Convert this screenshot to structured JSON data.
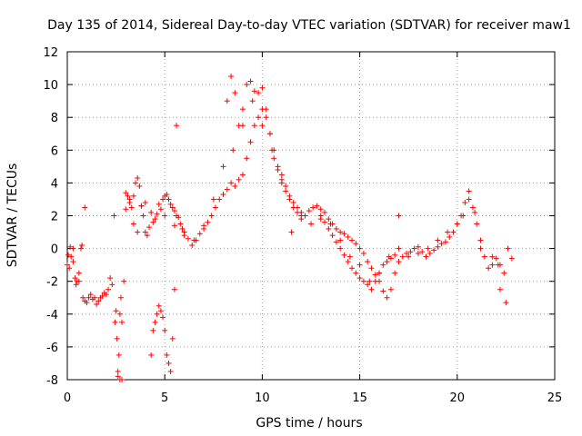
{
  "chart_data": {
    "type": "scatter",
    "title": "Day 135 of 2014, Sidereal Day-to-day VTEC variation (SDTVAR) for receiver maw1",
    "xlabel": "GPS time / hours",
    "ylabel": "SDTVAR / TECUs",
    "xlim": [
      0,
      25
    ],
    "ylim": [
      -8,
      12
    ],
    "xticks": [
      0,
      5,
      10,
      15,
      20,
      25
    ],
    "yticks": [
      -8,
      -6,
      -4,
      -2,
      0,
      2,
      4,
      6,
      8,
      10,
      12
    ],
    "grid": true,
    "marker": "+",
    "color": "#ff0000",
    "series": [
      {
        "name": "SDTVAR",
        "x": [
          0.0,
          0.1,
          0.2,
          0.3,
          0.4,
          0.5,
          0.6,
          0.7,
          0.8,
          0.9,
          1.0,
          1.1,
          1.2,
          1.3,
          1.4,
          1.5,
          1.6,
          1.7,
          1.8,
          1.9,
          2.0,
          2.1,
          2.2,
          2.3,
          2.4,
          2.5,
          2.6,
          2.7,
          2.8,
          2.9,
          3.0,
          3.1,
          3.2,
          3.3,
          3.4,
          3.5,
          3.6,
          3.7,
          3.8,
          3.9,
          4.0,
          4.1,
          4.2,
          4.3,
          4.4,
          4.5,
          4.6,
          4.7,
          4.8,
          4.9,
          5.0,
          5.1,
          5.2,
          5.3,
          5.4,
          5.5,
          5.6,
          5.7,
          5.8,
          5.9,
          6.0,
          6.2,
          6.4,
          6.6,
          6.8,
          7.0,
          7.2,
          7.4,
          7.6,
          7.8,
          8.0,
          8.2,
          8.4,
          8.6,
          8.8,
          9.0,
          9.2,
          9.4,
          9.6,
          9.8,
          10.0,
          10.2,
          10.4,
          10.6,
          10.8,
          11.0,
          11.2,
          11.4,
          11.6,
          11.8,
          12.0,
          12.2,
          12.4,
          12.6,
          12.8,
          13.0,
          13.2,
          13.4,
          13.6,
          13.8,
          14.0,
          14.2,
          14.4,
          14.6,
          14.8,
          15.0,
          15.2,
          15.4,
          15.6,
          15.8,
          16.0,
          16.2,
          16.4,
          16.6,
          16.8,
          17.0,
          17.2,
          17.4,
          17.6,
          17.8,
          18.0,
          18.2,
          18.4,
          18.6,
          18.8,
          19.0,
          19.2,
          19.4,
          19.6,
          19.8,
          20.0,
          20.2,
          20.4,
          20.6,
          20.8,
          21.0,
          21.2,
          21.4,
          21.6,
          21.8,
          22.0,
          22.2,
          22.4,
          22.6,
          22.8,
          0.05,
          0.15,
          0.3,
          0.45,
          0.6,
          0.75,
          0.9,
          2.45,
          2.55,
          2.6,
          2.65,
          2.7,
          2.75,
          2.8,
          4.3,
          4.4,
          4.5,
          4.6,
          4.7,
          4.8,
          4.9,
          5.0,
          5.1,
          5.2,
          5.3,
          5.4,
          5.5,
          5.6,
          8.2,
          8.4,
          8.6,
          8.8,
          9.0,
          9.2,
          9.4,
          9.6,
          9.8,
          10.0,
          10.2,
          10.4,
          10.6,
          10.8,
          11.0,
          11.2,
          11.4,
          11.6,
          11.8,
          12.0,
          13.0,
          13.2,
          13.4,
          13.6,
          13.8,
          14.0,
          14.2,
          14.4,
          14.6,
          14.8,
          15.0,
          15.2,
          15.4,
          15.6,
          15.8,
          16.0,
          16.2,
          16.4,
          16.6,
          16.8,
          17.0,
          3.0,
          3.2,
          3.4,
          3.6,
          3.8,
          4.0,
          5.0,
          5.5,
          6.0,
          6.5,
          7.0,
          7.5,
          8.0,
          8.5,
          9.0,
          9.5,
          10.0,
          10.5,
          11.0,
          11.5,
          12.0,
          12.5,
          13.0,
          13.5,
          14.0,
          14.5,
          15.0,
          15.5,
          16.0,
          16.5,
          17.0,
          17.5,
          18.0,
          18.5,
          19.0,
          19.5,
          20.0,
          20.3,
          20.6,
          20.9,
          21.2,
          21.8,
          22.2,
          22.5,
          22.1
        ],
        "y": [
          -1.0,
          -1.2,
          -0.5,
          0.0,
          -1.8,
          -2.0,
          -1.5,
          0.0,
          -3.0,
          -3.2,
          -3.3,
          -3.0,
          -2.8,
          -3.1,
          -3.0,
          -3.4,
          -3.2,
          -3.0,
          -2.9,
          -2.7,
          -2.8,
          -2.5,
          -1.8,
          -2.2,
          2.0,
          -3.8,
          -7.5,
          -8.0,
          -4.5,
          -2.0,
          3.4,
          3.2,
          3.0,
          2.5,
          3.2,
          4.0,
          4.3,
          3.8,
          2.6,
          2.0,
          1.0,
          0.8,
          1.3,
          2.2,
          1.6,
          1.8,
          2.1,
          2.7,
          2.4,
          3.0,
          3.2,
          3.3,
          3.0,
          2.7,
          2.5,
          2.3,
          2.0,
          1.9,
          1.5,
          1.2,
          1.0,
          0.6,
          0.2,
          0.5,
          0.9,
          1.2,
          1.6,
          2.0,
          2.5,
          3.0,
          3.3,
          3.6,
          4.0,
          3.8,
          4.2,
          4.5,
          5.5,
          6.5,
          7.5,
          8.0,
          8.5,
          8.0,
          7.0,
          5.5,
          4.8,
          4.2,
          3.5,
          3.0,
          2.5,
          2.2,
          1.8,
          2.0,
          2.3,
          2.5,
          2.6,
          2.4,
          2.2,
          1.8,
          1.5,
          1.2,
          1.0,
          0.9,
          0.7,
          0.5,
          0.3,
          0.0,
          -0.3,
          -0.8,
          -1.2,
          -1.6,
          -2.0,
          -2.6,
          -3.0,
          -2.5,
          -1.5,
          -0.8,
          -0.5,
          -0.3,
          -0.2,
          0.0,
          0.1,
          -0.2,
          -0.5,
          -0.3,
          -0.1,
          0.1,
          0.3,
          0.4,
          0.7,
          1.0,
          1.5,
          2.0,
          2.8,
          3.0,
          2.5,
          1.5,
          0.5,
          -0.5,
          -1.2,
          -1.0,
          -0.6,
          -1.0,
          -1.5,
          0.0,
          -0.6,
          -0.4,
          0.1,
          -0.8,
          -2.2,
          -2.0,
          0.2,
          2.5,
          -4.5,
          -5.5,
          -7.8,
          -6.5,
          -4.0,
          -3.0,
          -8.0,
          -6.5,
          -5.0,
          -4.5,
          -4.0,
          -3.5,
          -3.8,
          -4.2,
          -5.0,
          -6.5,
          -7.0,
          -7.5,
          -5.5,
          -2.5,
          7.5,
          9.0,
          10.5,
          9.5,
          7.5,
          8.5,
          10.0,
          10.2,
          9.6,
          9.5,
          9.8,
          8.5,
          7.0,
          6.0,
          5.0,
          4.5,
          3.8,
          3.2,
          2.8,
          2.5,
          2.2,
          2.0,
          1.6,
          1.2,
          0.8,
          0.4,
          0.0,
          -0.4,
          -0.8,
          -1.2,
          -1.5,
          -1.8,
          -2.0,
          -2.2,
          -2.5,
          -2.0,
          -1.5,
          -1.0,
          -0.8,
          -0.6,
          -0.4,
          2.0,
          2.4,
          2.8,
          1.5,
          1.0,
          2.6,
          2.8,
          2.0,
          1.4,
          0.8,
          0.5,
          1.4,
          3.0,
          5.0,
          6.0,
          7.5,
          9.0,
          7.5,
          6.0,
          4.0,
          1.0,
          2.0,
          1.5,
          1.8,
          1.5,
          0.5,
          -0.5,
          -1.0,
          -2.0,
          -1.5,
          -0.5,
          0.0,
          -0.5,
          -0.3,
          0.0,
          0.5,
          1.0,
          1.5,
          2.0,
          3.5,
          2.2,
          0.0,
          -0.5,
          -2.5,
          -3.3,
          -1.0
        ]
      }
    ]
  }
}
